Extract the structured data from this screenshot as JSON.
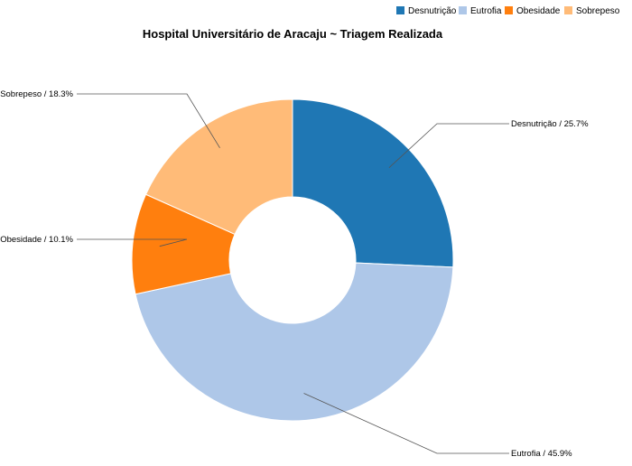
{
  "chart_data": {
    "type": "pie",
    "title": "Hospital Universitário de Aracaju ~ Triagem Realizada",
    "donut": true,
    "legend_position": "top-right",
    "slices": [
      {
        "name": "Desnutrição",
        "value": 25.7,
        "label": "Desnutrição / 25.7%",
        "color": "#1f77b4"
      },
      {
        "name": "Eutrofia",
        "value": 45.9,
        "label": "Eutrofia / 45.9%",
        "color": "#aec7e8"
      },
      {
        "name": "Obesidade",
        "value": 10.1,
        "label": "Obesidade / 10.1%",
        "color": "#ff7f0e"
      },
      {
        "name": "Sobrepeso",
        "value": 18.3,
        "label": "Sobrepeso / 18.3%",
        "color": "#ffbb78"
      }
    ]
  }
}
